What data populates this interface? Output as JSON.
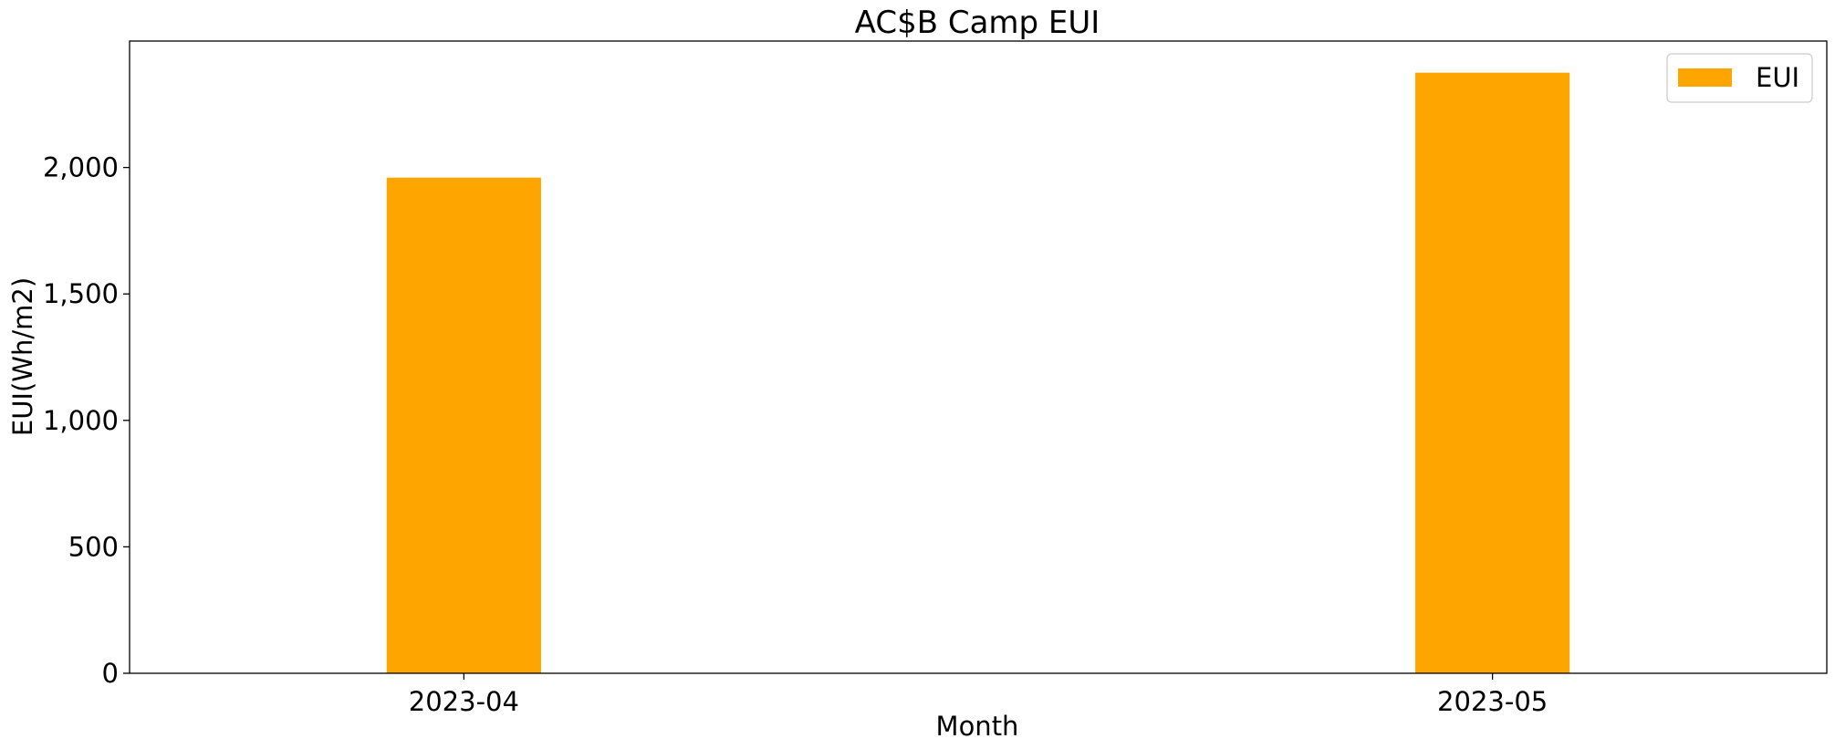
{
  "chart_data": {
    "type": "bar",
    "title": "AC$B Camp EUI",
    "xlabel": "Month",
    "ylabel": "EUI(Wh/m2)",
    "categories": [
      "2023-04",
      "2023-05"
    ],
    "series": [
      {
        "name": "EUI",
        "values": [
          1960,
          2375
        ],
        "color": "#FFA500"
      }
    ],
    "ylim": [
      0,
      2500
    ],
    "yticks": [
      0,
      500,
      1000,
      1500,
      2000
    ],
    "ytick_labels": [
      "0",
      "500",
      "1,000",
      "1,500",
      "2,000"
    ],
    "grid": false,
    "legend_position": "top-right"
  }
}
